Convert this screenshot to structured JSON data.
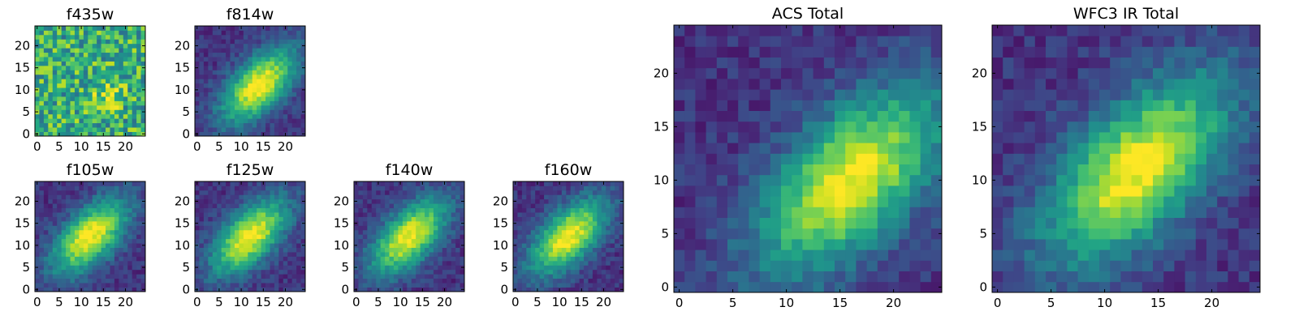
{
  "chart_data": [
    {
      "type": "heatmap",
      "title": "f435w",
      "xticks": [
        0,
        5,
        10,
        15,
        20
      ],
      "yticks": [
        0,
        5,
        10,
        15,
        20
      ],
      "grid_size": 25,
      "colormap": "viridis",
      "pattern": "noise",
      "peak": [
        16,
        9
      ]
    },
    {
      "type": "heatmap",
      "title": "f814w",
      "xticks": [
        0,
        5,
        10,
        15,
        20
      ],
      "yticks": [
        0,
        5,
        10,
        15,
        20
      ],
      "grid_size": 25,
      "colormap": "viridis",
      "pattern": "diagonal",
      "peak": [
        14,
        11
      ]
    },
    {
      "type": "heatmap",
      "title": "f105w",
      "xticks": [
        0,
        5,
        10,
        15,
        20
      ],
      "yticks": [
        0,
        5,
        10,
        15,
        20
      ],
      "grid_size": 25,
      "colormap": "viridis",
      "pattern": "diagonal",
      "peak": [
        12,
        12
      ]
    },
    {
      "type": "heatmap",
      "title": "f125w",
      "xticks": [
        0,
        5,
        10,
        15,
        20
      ],
      "yticks": [
        0,
        5,
        10,
        15,
        20
      ],
      "grid_size": 25,
      "colormap": "viridis",
      "pattern": "diagonal",
      "peak": [
        12,
        12
      ]
    },
    {
      "type": "heatmap",
      "title": "f140w",
      "xticks": [
        0,
        5,
        10,
        15,
        20
      ],
      "yticks": [
        0,
        5,
        10,
        15,
        20
      ],
      "grid_size": 25,
      "colormap": "viridis",
      "pattern": "diagonal",
      "peak": [
        12,
        12
      ]
    },
    {
      "type": "heatmap",
      "title": "f160w",
      "xticks": [
        0,
        5,
        10,
        15,
        20
      ],
      "yticks": [
        0,
        5,
        10,
        15,
        20
      ],
      "grid_size": 25,
      "colormap": "viridis",
      "pattern": "diagonal",
      "peak": [
        12,
        12
      ]
    },
    {
      "type": "heatmap",
      "title": "ACS Total",
      "xticks": [
        0,
        5,
        10,
        15,
        20
      ],
      "yticks": [
        0,
        5,
        10,
        15,
        20
      ],
      "grid_size": 25,
      "colormap": "viridis",
      "pattern": "diagonal",
      "peak": [
        16,
        10
      ]
    },
    {
      "type": "heatmap",
      "title": "WFC3 IR Total",
      "xticks": [
        0,
        5,
        10,
        15,
        20
      ],
      "yticks": [
        0,
        5,
        10,
        15,
        20
      ],
      "grid_size": 25,
      "colormap": "viridis",
      "pattern": "diagonal",
      "peak": [
        13,
        11
      ]
    }
  ]
}
